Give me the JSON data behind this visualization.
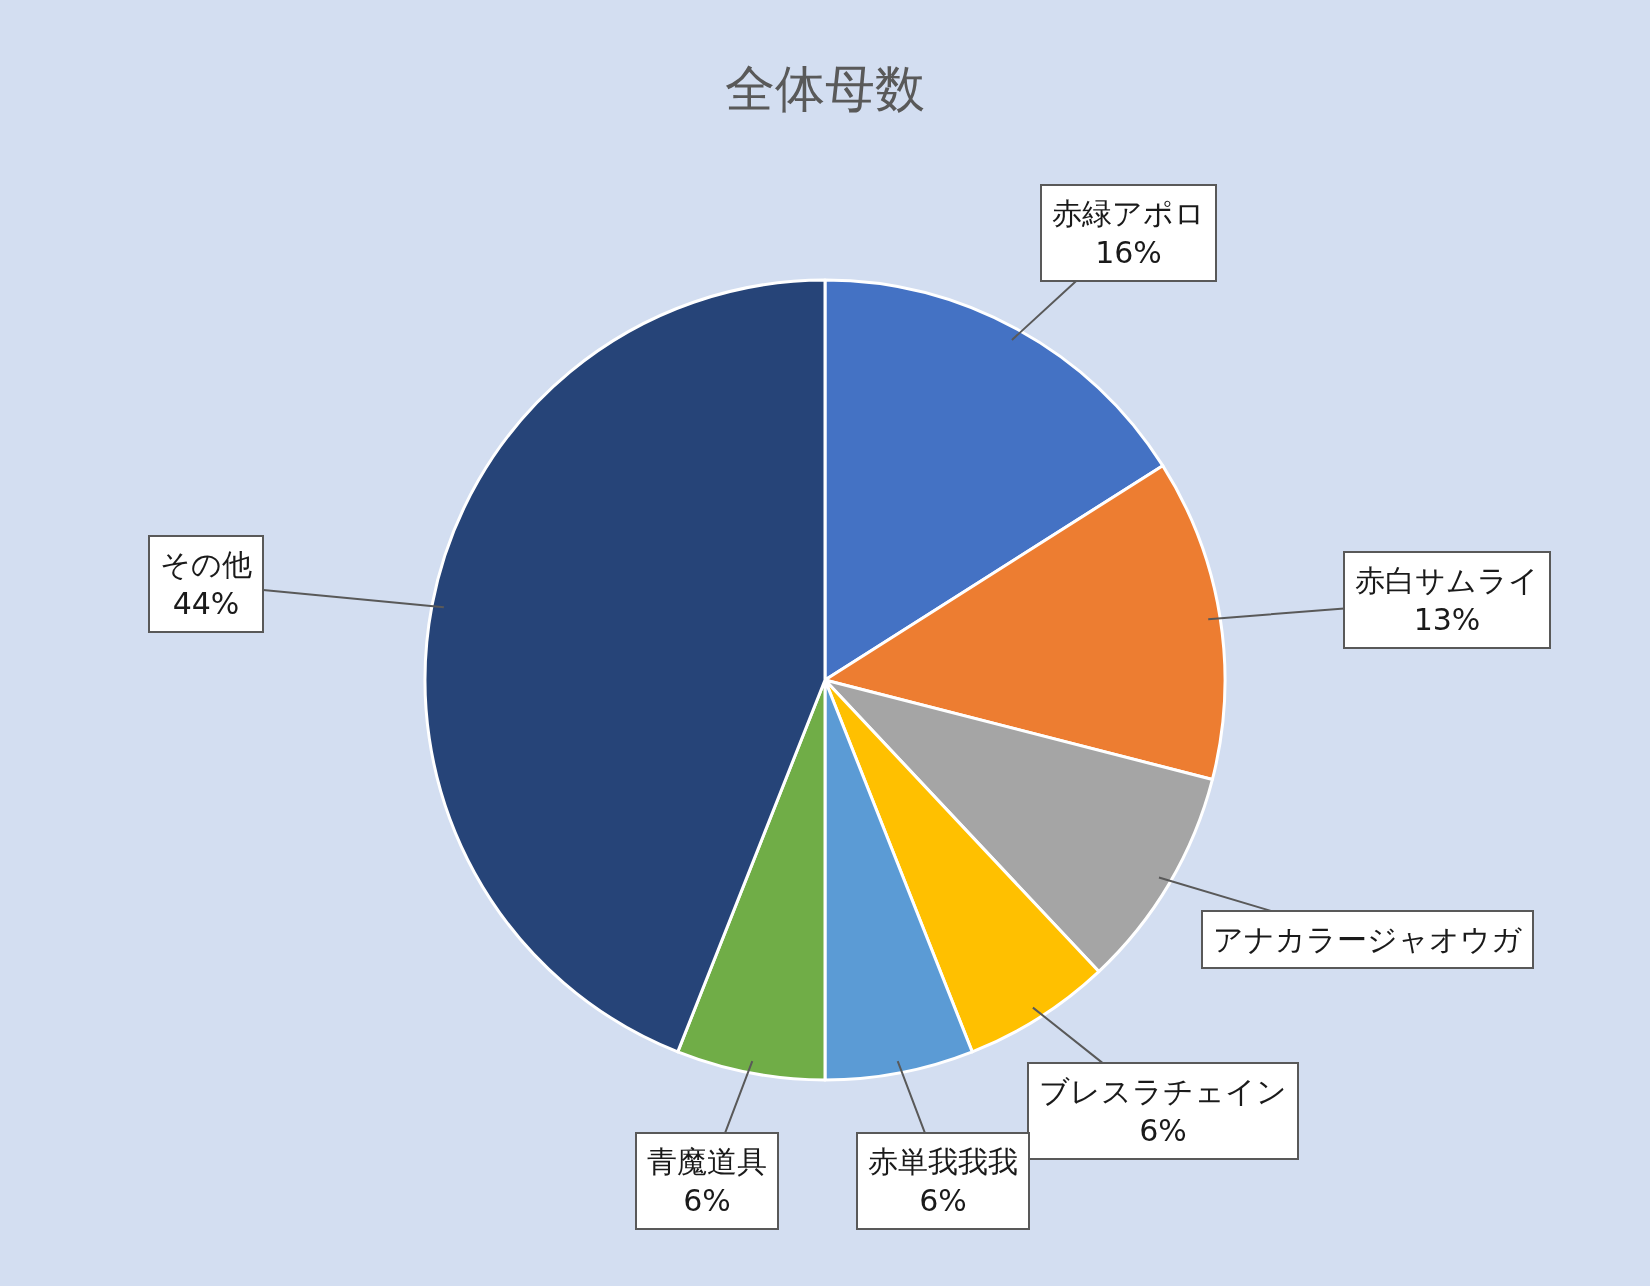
{
  "chart_data": {
    "type": "pie",
    "title": "全体母数",
    "categories": [
      "赤緑アポロ",
      "赤白サムライ",
      "アナカラージャオウガ",
      "ブレスラチェイン",
      "赤単我我我",
      "青魔道具",
      "その他"
    ],
    "values": [
      16,
      13,
      9,
      6,
      6,
      6,
      44
    ],
    "colors": [
      "#4472c4",
      "#ed7d31",
      "#a5a5a5",
      "#ffc000",
      "#5b9bd5",
      "#70ad47",
      "#264478"
    ],
    "value_labels": [
      "16%",
      "13%",
      null,
      "6%",
      "6%",
      "6%",
      "44%"
    ]
  }
}
